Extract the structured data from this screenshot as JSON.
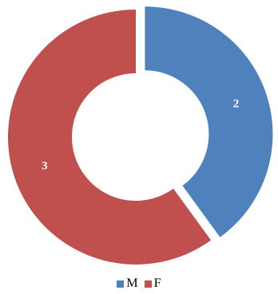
{
  "chart_data": {
    "type": "pie",
    "variant": "donut",
    "categories": [
      "M",
      "F"
    ],
    "values": [
      2,
      3
    ],
    "colors": [
      "#4F81BD",
      "#C0504D"
    ],
    "exploded": [
      true,
      false
    ],
    "data_labels": [
      "2",
      "3"
    ],
    "legend": {
      "position": "bottom",
      "entries": [
        "M",
        "F"
      ]
    }
  }
}
